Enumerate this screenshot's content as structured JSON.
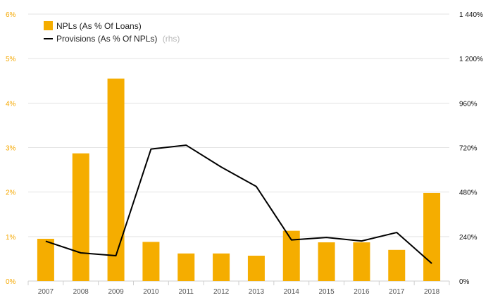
{
  "chart_data": {
    "type": "bar",
    "categories": [
      "2007",
      "2008",
      "2009",
      "2010",
      "2011",
      "2012",
      "2013",
      "2014",
      "2015",
      "2016",
      "2017",
      "2018"
    ],
    "series": [
      {
        "name": "NPLs (As % Of Loans)",
        "type": "bar",
        "axis": "left",
        "values": [
          0.95,
          2.87,
          4.55,
          0.88,
          0.62,
          0.62,
          0.57,
          1.13,
          0.87,
          0.87,
          0.7,
          1.98
        ]
      },
      {
        "name": "Provisions (As % Of NPLs)",
        "name_suffix": "(rhs)",
        "type": "line",
        "axis": "right",
        "values": [
          215,
          152,
          137,
          712,
          733,
          615,
          510,
          222,
          235,
          216,
          262,
          95
        ]
      }
    ],
    "y_left": {
      "lim": [
        0,
        6
      ],
      "ticks": [
        0,
        1,
        2,
        3,
        4,
        5,
        6
      ],
      "labels": [
        "0%",
        "1%",
        "2%",
        "3%",
        "4%",
        "5%",
        "6%"
      ]
    },
    "y_right": {
      "lim": [
        0,
        1440
      ],
      "ticks": [
        0,
        240,
        480,
        720,
        960,
        1200,
        1440
      ],
      "labels": [
        "0%",
        "240%",
        "480%",
        "720%",
        "960%",
        "1 200%",
        "1 440%"
      ]
    },
    "grid": true,
    "legend_position": "top-left",
    "colors": {
      "bar": "#f5ad00",
      "line": "#000000",
      "left_axis_text": "#f5a800",
      "grid": "#e3e3e3"
    }
  }
}
